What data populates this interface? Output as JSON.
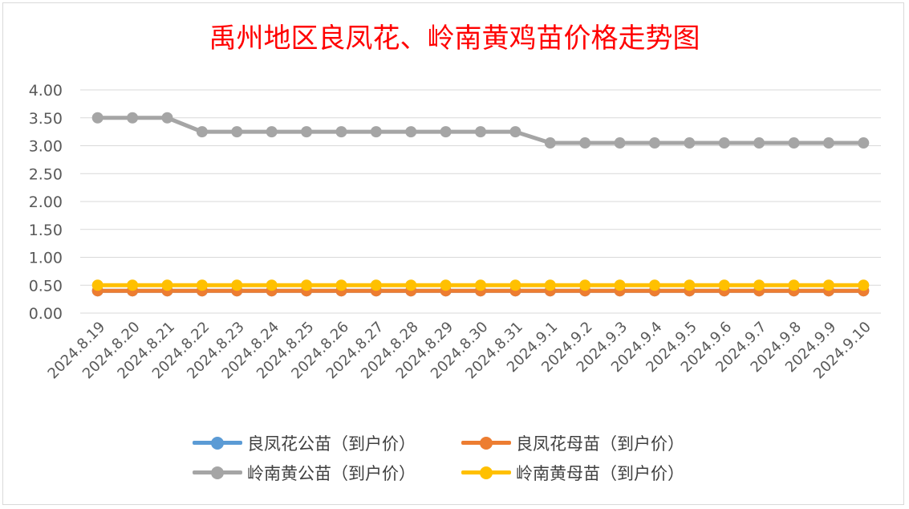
{
  "chart_data": {
    "type": "line",
    "title": "禹州地区良凤花、岭南黄鸡苗价格走势图",
    "categories": [
      "2024.8.19",
      "2024.8.20",
      "2024.8.21",
      "2024.8.22",
      "2024.8.23",
      "2024.8.24",
      "2024.8.25",
      "2024.8.26",
      "2024.8.27",
      "2024.8.28",
      "2024.8.29",
      "2024.8.30",
      "2024.8.31",
      "2024.9.1",
      "2024.9.2",
      "2024.9.3",
      "2024.9.4",
      "2024.9.5",
      "2024.9.6",
      "2024.9.7",
      "2024.9.8",
      "2024.9.9",
      "2024.9.10"
    ],
    "ylim": [
      0,
      4
    ],
    "yticks": [
      "0.00",
      "0.50",
      "1.00",
      "1.50",
      "2.00",
      "2.50",
      "3.00",
      "3.50",
      "4.00"
    ],
    "grid": true,
    "legend_position": "bottom",
    "series": [
      {
        "name": "良凤花公苗（到户价）",
        "color": "#5b9bd5",
        "values": [
          0.4,
          0.4,
          0.4,
          0.4,
          0.4,
          0.4,
          0.4,
          0.4,
          0.4,
          0.4,
          0.4,
          0.4,
          0.4,
          0.4,
          0.4,
          0.4,
          0.4,
          0.4,
          0.4,
          0.4,
          0.4,
          0.4,
          0.4
        ]
      },
      {
        "name": "良凤花母苗（到户价）",
        "color": "#ed7d31",
        "values": [
          0.4,
          0.4,
          0.4,
          0.4,
          0.4,
          0.4,
          0.4,
          0.4,
          0.4,
          0.4,
          0.4,
          0.4,
          0.4,
          0.4,
          0.4,
          0.4,
          0.4,
          0.4,
          0.4,
          0.4,
          0.4,
          0.4,
          0.4
        ]
      },
      {
        "name": "岭南黄公苗（到户价）",
        "color": "#a5a5a5",
        "values": [
          3.5,
          3.5,
          3.5,
          3.25,
          3.25,
          3.25,
          3.25,
          3.25,
          3.25,
          3.25,
          3.25,
          3.25,
          3.25,
          3.05,
          3.05,
          3.05,
          3.05,
          3.05,
          3.05,
          3.05,
          3.05,
          3.05,
          3.05
        ]
      },
      {
        "name": "岭南黄母苗（到户价）",
        "color": "#ffc000",
        "values": [
          0.5,
          0.5,
          0.5,
          0.5,
          0.5,
          0.5,
          0.5,
          0.5,
          0.5,
          0.5,
          0.5,
          0.5,
          0.5,
          0.5,
          0.5,
          0.5,
          0.5,
          0.5,
          0.5,
          0.5,
          0.5,
          0.5,
          0.5
        ]
      }
    ]
  }
}
